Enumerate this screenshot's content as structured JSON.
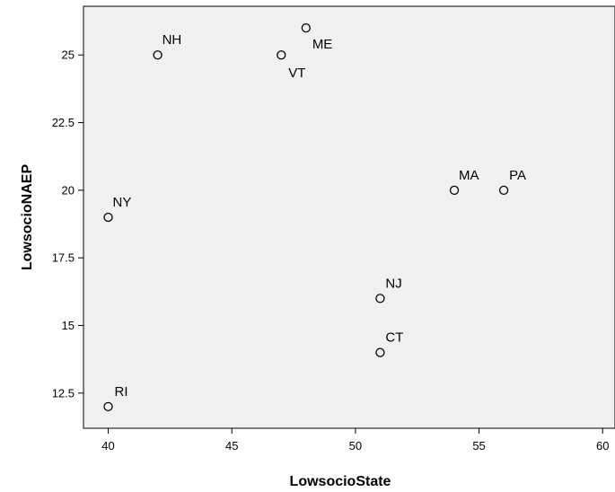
{
  "chart_data": {
    "type": "scatter",
    "title": "",
    "xlabel": "LowsocioState",
    "ylabel": "LowsocioNAEP",
    "xlim": [
      39,
      60.5
    ],
    "ylim": [
      11.2,
      26.8
    ],
    "x_ticks": [
      40,
      45,
      50,
      55,
      60
    ],
    "y_ticks": [
      12.5,
      15,
      17.5,
      20,
      22.5,
      25
    ],
    "grid": false,
    "plot_background": "#f0f0f0",
    "marker_color": "#000000",
    "points": [
      {
        "label": "NH",
        "x": 42,
        "y": 25
      },
      {
        "label": "ME",
        "x": 48,
        "y": 26
      },
      {
        "label": "VT",
        "x": 47,
        "y": 25
      },
      {
        "label": "MA",
        "x": 54,
        "y": 20
      },
      {
        "label": "PA",
        "x": 56,
        "y": 20
      },
      {
        "label": "NY",
        "x": 40,
        "y": 19
      },
      {
        "label": "NJ",
        "x": 51,
        "y": 16
      },
      {
        "label": "CT",
        "x": 51,
        "y": 14
      },
      {
        "label": "RI",
        "x": 40,
        "y": 12
      }
    ]
  }
}
